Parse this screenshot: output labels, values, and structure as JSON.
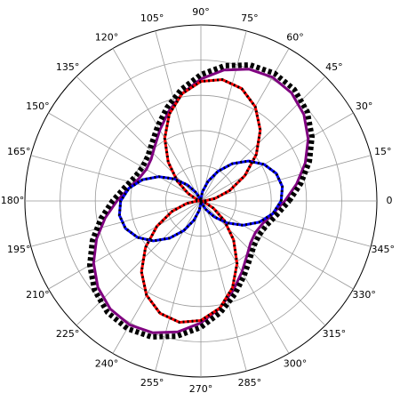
{
  "chart_data": {
    "type": "polar",
    "theta": [
      0,
      10,
      20,
      30,
      40,
      50,
      60,
      70,
      80,
      90,
      100,
      110,
      120,
      130,
      140,
      150,
      160,
      170,
      180,
      190,
      200,
      210,
      220,
      230,
      240,
      250,
      260,
      270,
      280,
      290,
      300,
      310,
      320,
      330,
      340,
      350,
      360
    ],
    "rlim": [
      0,
      1
    ],
    "rticks": [
      0.2,
      0.4,
      0.6,
      0.8,
      1.0
    ],
    "thetaticks": [
      0,
      {
        "value": 15,
        "label": "15°"
      },
      {
        "value": 30,
        "label": "30°"
      },
      {
        "value": 45,
        "label": "45°"
      },
      {
        "value": 60,
        "label": "60°"
      },
      {
        "value": 75,
        "label": "75°"
      },
      {
        "value": 90,
        "label": "90°"
      },
      {
        "value": 105,
        "label": "105°"
      },
      {
        "value": 120,
        "label": "120°"
      },
      {
        "value": 135,
        "label": "135°"
      },
      {
        "value": 150,
        "label": "150°"
      },
      {
        "value": 165,
        "label": "165°"
      },
      {
        "value": 180,
        "label": "180°"
      },
      {
        "value": 195,
        "label": "195°"
      },
      {
        "value": 210,
        "label": "210°"
      },
      {
        "value": 225,
        "label": "225°"
      },
      {
        "value": 240,
        "label": "240°"
      },
      {
        "value": 255,
        "label": "255°"
      },
      {
        "value": 270,
        "label": "270°"
      },
      {
        "value": 285,
        "label": "285°"
      },
      {
        "value": 300,
        "label": "300°"
      },
      {
        "value": 315,
        "label": "315°"
      },
      {
        "value": 330,
        "label": "330°"
      },
      {
        "value": 345,
        "label": "345°"
      }
    ],
    "grid": true,
    "series": [
      {
        "color": "#800080",
        "style": "solid",
        "values": [
          0.477,
          0.552,
          0.631,
          0.704,
          0.764,
          0.801,
          0.812,
          0.797,
          0.755,
          0.693,
          0.618,
          0.539,
          0.466,
          0.407,
          0.369,
          0.358,
          0.374,
          0.415,
          0.477,
          0.552,
          0.631,
          0.704,
          0.764,
          0.801,
          0.812,
          0.797,
          0.755,
          0.693,
          0.618,
          0.539,
          0.466,
          0.407,
          0.369,
          0.358,
          0.374,
          0.415,
          0.477
        ]
      },
      {
        "color": "#ff0000",
        "style": "solid",
        "values": [
          0.021,
          0.082,
          0.175,
          0.289,
          0.411,
          0.525,
          0.618,
          0.679,
          0.7,
          0.679,
          0.618,
          0.525,
          0.411,
          0.289,
          0.175,
          0.082,
          0.021,
          0,
          0.021,
          0.082,
          0.175,
          0.289,
          0.411,
          0.525,
          0.618,
          0.679,
          0.7,
          0.679,
          0.618,
          0.525,
          0.411,
          0.289,
          0.175,
          0.082,
          0.021,
          0,
          0.021
        ]
      },
      {
        "color": "#0000ff",
        "style": "solid",
        "values": [
          0.456,
          0.47,
          0.456,
          0.415,
          0.353,
          0.276,
          0.194,
          0.118,
          0.055,
          0.014,
          0,
          0.014,
          0.055,
          0.118,
          0.194,
          0.276,
          0.353,
          0.415,
          0.456,
          0.47,
          0.456,
          0.415,
          0.353,
          0.276,
          0.194,
          0.118,
          0.055,
          0.014,
          0,
          0.014,
          0.055,
          0.118,
          0.194,
          0.276,
          0.353,
          0.415,
          0.456
        ]
      },
      {
        "color": "#000000",
        "style": "thick-dot",
        "values": [
          0.502,
          0.577,
          0.656,
          0.729,
          0.789,
          0.826,
          0.837,
          0.822,
          0.78,
          0.718,
          0.643,
          0.564,
          0.491,
          0.432,
          0.394,
          0.383,
          0.399,
          0.44,
          0.502,
          0.577,
          0.656,
          0.729,
          0.789,
          0.826,
          0.837,
          0.822,
          0.78,
          0.718,
          0.643,
          0.564,
          0.491,
          0.432,
          0.394,
          0.383,
          0.399,
          0.44,
          0.502
        ]
      },
      {
        "color": "#000000",
        "style": "dot",
        "values": [
          0.021,
          0.082,
          0.175,
          0.289,
          0.411,
          0.525,
          0.618,
          0.679,
          0.7,
          0.679,
          0.618,
          0.525,
          0.411,
          0.289,
          0.175,
          0.082,
          0.021,
          0,
          0.021,
          0.082,
          0.175,
          0.289,
          0.411,
          0.525,
          0.618,
          0.679,
          0.7,
          0.679,
          0.618,
          0.525,
          0.411,
          0.289,
          0.175,
          0.082,
          0.021,
          0,
          0.021
        ]
      },
      {
        "color": "#000000",
        "style": "dot",
        "values": [
          0.456,
          0.47,
          0.456,
          0.415,
          0.353,
          0.276,
          0.194,
          0.118,
          0.055,
          0.014,
          0,
          0.014,
          0.055,
          0.118,
          0.194,
          0.276,
          0.353,
          0.415,
          0.456,
          0.47,
          0.456,
          0.415,
          0.353,
          0.276,
          0.194,
          0.118,
          0.055,
          0.014,
          0,
          0.014,
          0.055,
          0.118,
          0.194,
          0.276,
          0.353,
          0.415,
          0.456
        ]
      }
    ]
  }
}
